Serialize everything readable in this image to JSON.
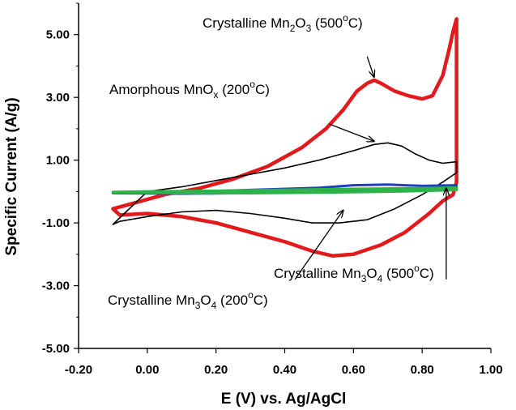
{
  "chart_data": {
    "type": "line",
    "xlabel": "E (V) vs. Ag/AgCl",
    "ylabel": "Specific Current (A/g)",
    "xlim": [
      -0.2,
      1.0
    ],
    "ylim": [
      -5.0,
      6.0
    ],
    "x_ticks": [
      "-0.20",
      "0.00",
      "0.20",
      "0.40",
      "0.60",
      "0.80",
      "1.00"
    ],
    "x_tick_values": [
      -0.2,
      0.0,
      0.2,
      0.4,
      0.6,
      0.8,
      1.0
    ],
    "y_ticks": [
      "5.00",
      "3.00",
      "1.00",
      "-1.00",
      "-3.00",
      "-5.00"
    ],
    "y_tick_values": [
      5,
      3,
      1,
      -1,
      -3,
      -5
    ],
    "series": [
      {
        "color": "#e31a1c",
        "x": [
          -0.1,
          -0.05,
          0.05,
          0.15,
          0.25,
          0.35,
          0.45,
          0.52,
          0.57,
          0.61,
          0.64,
          0.66,
          0.68,
          0.72,
          0.76,
          0.8,
          0.83,
          0.86,
          0.88,
          0.89,
          0.9,
          0.9,
          0.89,
          0.86,
          0.82,
          0.75,
          0.68,
          0.6,
          0.54,
          0.48,
          0.4,
          0.3,
          0.2,
          0.1,
          0.0,
          -0.08,
          -0.1
        ],
        "y": [
          -0.55,
          -0.4,
          -0.1,
          0.1,
          0.4,
          0.8,
          1.4,
          2.0,
          2.6,
          3.2,
          3.45,
          3.55,
          3.45,
          3.2,
          3.05,
          2.95,
          3.05,
          3.7,
          4.6,
          5.1,
          5.5,
          0.3,
          -0.1,
          -0.3,
          -0.7,
          -1.3,
          -1.7,
          -2.0,
          -2.05,
          -1.9,
          -1.6,
          -1.3,
          -1.0,
          -0.8,
          -0.7,
          -0.75,
          -0.55
        ]
      },
      {
        "color": "#000000",
        "x": [
          -0.1,
          0.0,
          0.1,
          0.2,
          0.3,
          0.4,
          0.5,
          0.6,
          0.66,
          0.7,
          0.74,
          0.78,
          0.82,
          0.86,
          0.9,
          0.9,
          0.86,
          0.8,
          0.72,
          0.64,
          0.56,
          0.48,
          0.4,
          0.3,
          0.2,
          0.1,
          0.0,
          -0.08,
          -0.1
        ],
        "y": [
          -1.05,
          0.0,
          0.15,
          0.35,
          0.55,
          0.75,
          1.0,
          1.3,
          1.5,
          1.55,
          1.45,
          1.2,
          1.0,
          0.9,
          0.95,
          0.6,
          0.3,
          -0.1,
          -0.55,
          -0.9,
          -1.0,
          -1.0,
          -0.85,
          -0.7,
          -0.6,
          -0.65,
          -0.8,
          -0.95,
          -1.05
        ]
      },
      {
        "color": "#1f3fbf",
        "x": [
          -0.1,
          0.1,
          0.3,
          0.5,
          0.6,
          0.7,
          0.8,
          0.9,
          0.9,
          0.7,
          0.5,
          0.3,
          0.1,
          -0.1
        ],
        "y": [
          -0.05,
          -0.02,
          0.05,
          0.12,
          0.2,
          0.22,
          0.18,
          0.2,
          0.1,
          0.05,
          -0.02,
          -0.05,
          -0.07,
          -0.05
        ]
      },
      {
        "color": "#2db34a",
        "x": [
          -0.1,
          0.0,
          0.2,
          0.4,
          0.6,
          0.8,
          0.9,
          0.9,
          0.7,
          0.5,
          0.3,
          0.1,
          -0.1
        ],
        "y": [
          -0.02,
          0.0,
          0.02,
          0.05,
          0.08,
          0.1,
          0.12,
          0.05,
          0.0,
          -0.03,
          -0.05,
          -0.05,
          -0.02
        ]
      }
    ],
    "annotations": [
      {
        "text_main": "Crystalline Mn",
        "sub1": "2",
        "mid": "O",
        "sub2": "3",
        "tail": " (500",
        "sup": "o",
        "end": "C)"
      },
      {
        "text_main": "Amorphous MnO",
        "sub1": "x",
        "mid": "",
        "sub2": "",
        "tail": " (200",
        "sup": "o",
        "end": "C)"
      },
      {
        "text_main": "Crystalline Mn",
        "sub1": "3",
        "mid": "O",
        "sub2": "4",
        "tail": " (500",
        "sup": "o",
        "end": "C)"
      },
      {
        "text_main": "Crystalline Mn",
        "sub1": "3",
        "mid": "O",
        "sub2": "4",
        "tail": " (200",
        "sup": "o",
        "end": "C)"
      }
    ],
    "arrows": [
      {
        "from": [
          0.64,
          4.3
        ],
        "to": [
          0.66,
          3.65
        ]
      },
      {
        "from": [
          0.53,
          2.15
        ],
        "to": [
          0.66,
          1.6
        ]
      },
      {
        "from": [
          0.87,
          -2.8
        ],
        "to": [
          0.87,
          0.1
        ]
      },
      {
        "from": [
          0.43,
          -2.8
        ],
        "to": [
          0.57,
          -0.6
        ]
      }
    ],
    "grid": false
  }
}
